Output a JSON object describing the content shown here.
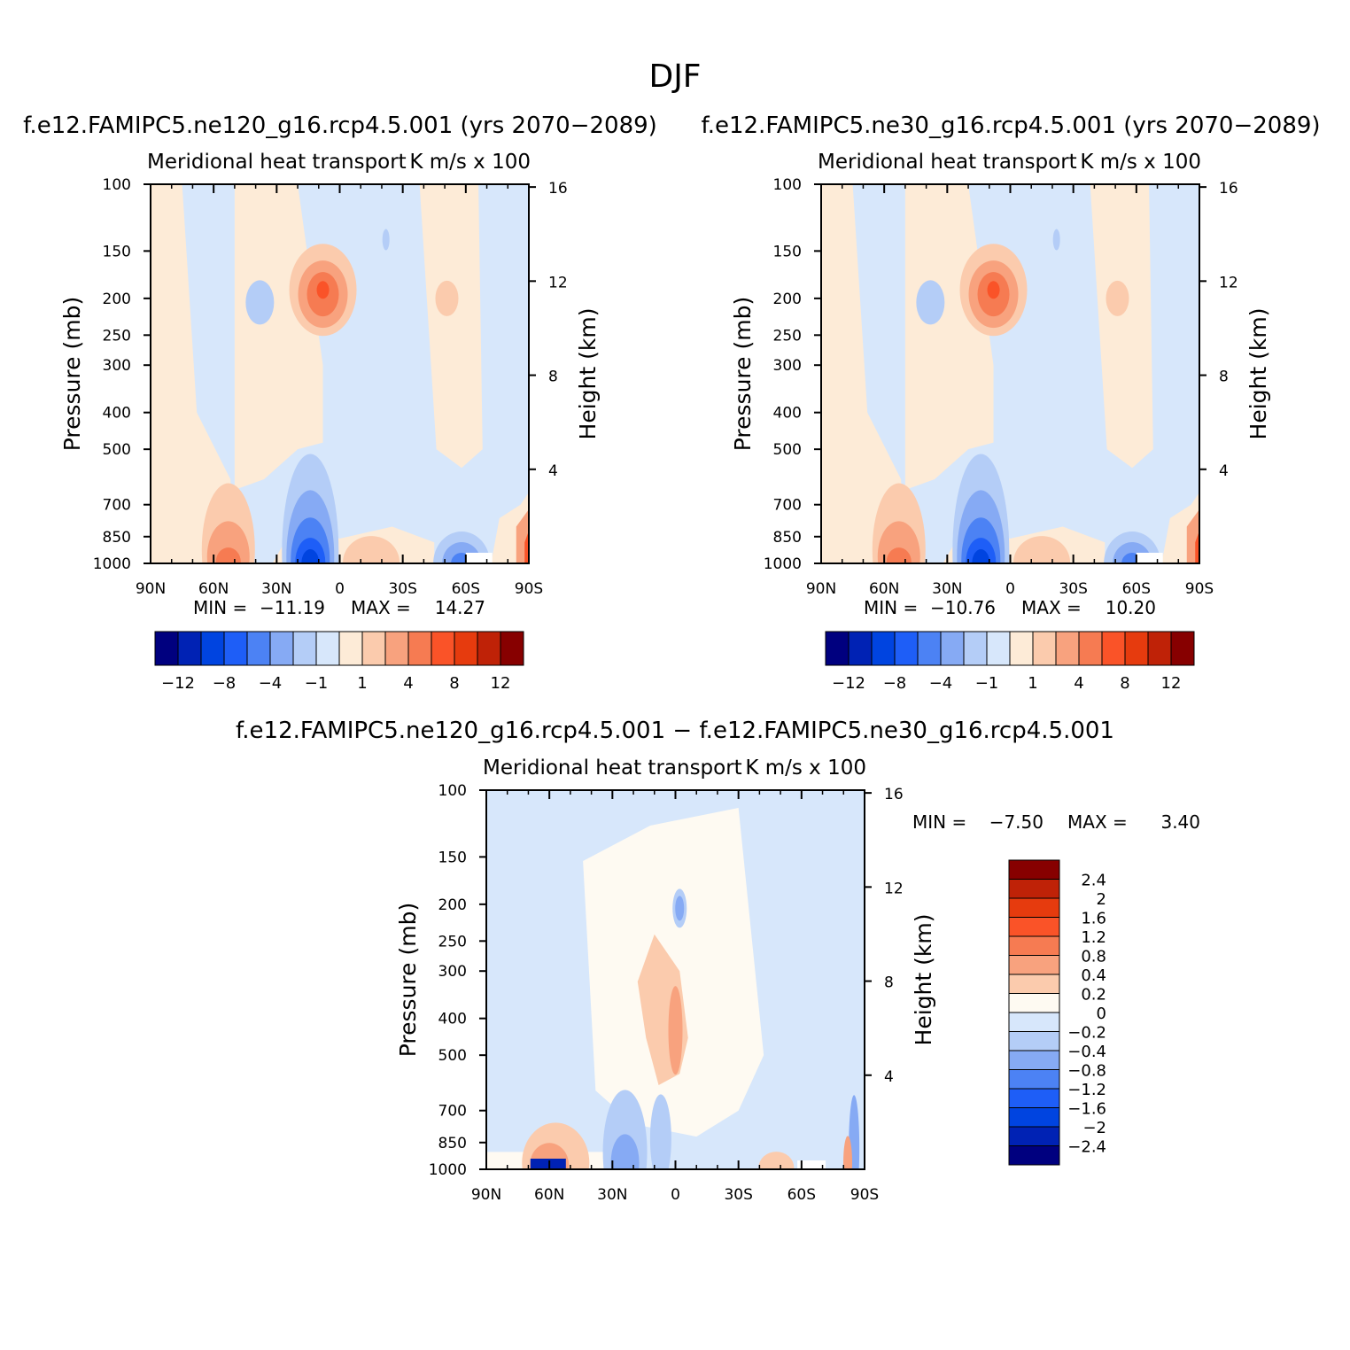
{
  "figure": {
    "title": "DJF"
  },
  "colors": {
    "main_scale": [
      "#00007f",
      "#0022b4",
      "#0044e0",
      "#1e5ef7",
      "#4c82f4",
      "#86aaf4",
      "#b4cdf7",
      "#d7e7fb",
      "#fdebd7",
      "#fbcbad",
      "#f8a27e",
      "#f67b52",
      "#fa5328",
      "#e63b0e",
      "#bf2207",
      "#870000"
    ],
    "diff_scale": [
      "#00007f",
      "#0022b4",
      "#0044e0",
      "#1e5ef7",
      "#4c82f4",
      "#86aaf4",
      "#b4cdf7",
      "#d7e7fb",
      "#fefaf2",
      "#fbcbad",
      "#f8a27e",
      "#f67b52",
      "#fa5328",
      "#e63b0e",
      "#bf2207",
      "#870000"
    ],
    "axis": "#000000"
  },
  "chart_data": [
    {
      "type": "heatmap",
      "case_title": "f.e12.FAMIPC5.ne120_g16.rcp4.5.001 (yrs 2070−2089)",
      "title": "Meridional heat transport",
      "units": "K m/s x 100",
      "ylabel": "Pressure (mb)",
      "y2label": "Height (km)",
      "x_ticks": [
        "90N",
        "60N",
        "30N",
        "0",
        "30S",
        "60S",
        "90S"
      ],
      "x_values": [
        90,
        60,
        30,
        0,
        -30,
        -60,
        -90
      ],
      "y_ticks": [
        "100",
        "150",
        "200",
        "250",
        "300",
        "400",
        "500",
        "700",
        "850",
        "1000"
      ],
      "y_values": [
        100,
        150,
        200,
        250,
        300,
        400,
        500,
        700,
        850,
        1000
      ],
      "ylim": [
        1000,
        100
      ],
      "y2_ticks": [
        "4",
        "8",
        "12",
        "16"
      ],
      "y2_values": [
        4,
        8,
        12,
        16
      ],
      "stats": {
        "min_label": "MIN =",
        "min": "−11.19",
        "max_label": "MAX =",
        "max": "14.27"
      },
      "colorbar": {
        "orientation": "horizontal",
        "labels": [
          "−12",
          "−8",
          "−4",
          "−1",
          "1",
          "4",
          "8",
          "12"
        ]
      }
    },
    {
      "type": "heatmap",
      "case_title": "f.e12.FAMIPC5.ne30_g16.rcp4.5.001 (yrs 2070−2089)",
      "title": "Meridional heat transport",
      "units": "K m/s x 100",
      "ylabel": "Pressure (mb)",
      "y2label": "Height (km)",
      "x_ticks": [
        "90N",
        "60N",
        "30N",
        "0",
        "30S",
        "60S",
        "90S"
      ],
      "x_values": [
        90,
        60,
        30,
        0,
        -30,
        -60,
        -90
      ],
      "y_ticks": [
        "100",
        "150",
        "200",
        "250",
        "300",
        "400",
        "500",
        "700",
        "850",
        "1000"
      ],
      "y_values": [
        100,
        150,
        200,
        250,
        300,
        400,
        500,
        700,
        850,
        1000
      ],
      "ylim": [
        1000,
        100
      ],
      "y2_ticks": [
        "4",
        "8",
        "12",
        "16"
      ],
      "y2_values": [
        4,
        8,
        12,
        16
      ],
      "stats": {
        "min_label": "MIN =",
        "min": "−10.76",
        "max_label": "MAX =",
        "max": "10.20"
      },
      "colorbar": {
        "orientation": "horizontal",
        "labels": [
          "−12",
          "−8",
          "−4",
          "−1",
          "1",
          "4",
          "8",
          "12"
        ]
      }
    },
    {
      "type": "heatmap",
      "case_title": "f.e12.FAMIPC5.ne120_g16.rcp4.5.001 − f.e12.FAMIPC5.ne30_g16.rcp4.5.001",
      "title": "Meridional heat transport",
      "units": "K m/s x 100",
      "ylabel": "Pressure (mb)",
      "y2label": "Height (km)",
      "x_ticks": [
        "90N",
        "60N",
        "30N",
        "0",
        "30S",
        "60S",
        "90S"
      ],
      "x_values": [
        90,
        60,
        30,
        0,
        -30,
        -60,
        -90
      ],
      "y_ticks": [
        "100",
        "150",
        "200",
        "250",
        "300",
        "400",
        "500",
        "700",
        "850",
        "1000"
      ],
      "y_values": [
        100,
        150,
        200,
        250,
        300,
        400,
        500,
        700,
        850,
        1000
      ],
      "ylim": [
        1000,
        100
      ],
      "y2_ticks": [
        "4",
        "8",
        "12",
        "16"
      ],
      "y2_values": [
        4,
        8,
        12,
        16
      ],
      "stats": {
        "min_label": "MIN =",
        "min": "−7.50",
        "max_label": "MAX =",
        "max": "3.40"
      },
      "colorbar": {
        "orientation": "vertical",
        "labels": [
          "2.4",
          "2",
          "1.6",
          "1.2",
          "0.8",
          "0.4",
          "0.2",
          "0",
          "−0.2",
          "−0.4",
          "−0.8",
          "−1.2",
          "−1.6",
          "−2",
          "−2.4"
        ]
      }
    }
  ]
}
